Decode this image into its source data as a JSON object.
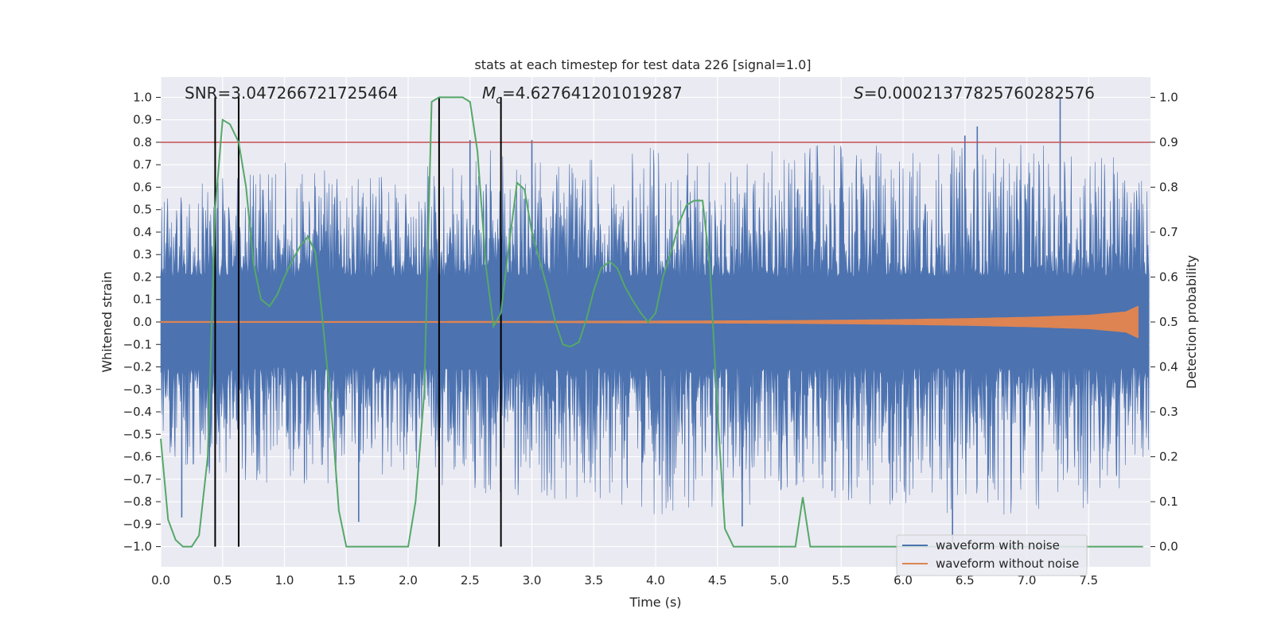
{
  "chart_data": {
    "type": "line",
    "title": "stats at each timestep for test data 226 [signal=1.0]",
    "xlabel": "Time (s)",
    "ylabel": "Whitened strain",
    "y2label": "Detection probability",
    "xlim": [
      0.0,
      8.0
    ],
    "ylim": [
      -1.09,
      1.09
    ],
    "y2lim": [
      -0.045,
      1.045
    ],
    "xticks": [
      0.0,
      0.5,
      1.0,
      1.5,
      2.0,
      2.5,
      3.0,
      3.5,
      4.0,
      4.5,
      5.0,
      5.5,
      6.0,
      6.5,
      7.0,
      7.5
    ],
    "xtick_labels": [
      "0.0",
      "0.5",
      "1.0",
      "1.5",
      "2.0",
      "2.5",
      "3.0",
      "3.5",
      "4.0",
      "4.5",
      "5.0",
      "5.5",
      "6.0",
      "6.5",
      "7.0",
      "7.5"
    ],
    "yticks": [
      1.0,
      0.9,
      0.8,
      0.7,
      0.6,
      0.5,
      0.4,
      0.3,
      0.2,
      0.1,
      0.0,
      -0.1,
      -0.2,
      -0.3,
      -0.4,
      -0.5,
      -0.6,
      -0.7,
      -0.8,
      -0.9,
      -1.0
    ],
    "ytick_labels": [
      "1.0",
      "0.9",
      "0.8",
      "0.7",
      "0.6",
      "0.5",
      "0.4",
      "0.3",
      "0.2",
      "0.1",
      "0.0",
      "−0.1",
      "−0.2",
      "−0.3",
      "−0.4",
      "−0.5",
      "−0.6",
      "−0.7",
      "−0.8",
      "−0.9",
      "−1.0"
    ],
    "y2ticks": [
      1.0,
      0.9,
      0.8,
      0.7,
      0.6,
      0.5,
      0.4,
      0.3,
      0.2,
      0.1,
      0.0
    ],
    "y2tick_labels": [
      "1.0",
      "0.9",
      "0.8",
      "0.7",
      "0.6",
      "0.5",
      "0.4",
      "0.3",
      "0.2",
      "0.1",
      "0.0"
    ],
    "annotations": {
      "snr": "SNR=3.047266721725464",
      "mc_symbol": "M",
      "mc_sub": "c",
      "mc_value": "=4.627641201019287",
      "s_symbol": "S",
      "s_value": "=0.00021377825760282576"
    },
    "threshold": {
      "value": 0.9,
      "axis": "y2",
      "color": "#c44e52"
    },
    "vlines_x": [
      0.44,
      0.63,
      2.25,
      2.75
    ],
    "noise_envelope": {
      "x": [
        0.0,
        0.5,
        1.0,
        1.5,
        2.0,
        2.5,
        3.0,
        3.5,
        4.0,
        4.5,
        5.0,
        5.5,
        6.0,
        6.5,
        7.0,
        7.5,
        8.0
      ],
      "upper": [
        0.45,
        0.5,
        0.55,
        0.5,
        0.5,
        0.6,
        0.55,
        0.55,
        0.6,
        0.55,
        0.6,
        0.6,
        0.6,
        0.6,
        0.6,
        0.6,
        0.5
      ],
      "lower": [
        -0.45,
        -0.55,
        -0.55,
        -0.55,
        -0.5,
        -0.6,
        -0.6,
        -0.6,
        -0.65,
        -0.65,
        -0.6,
        -0.6,
        -0.65,
        -0.65,
        -0.65,
        -0.65,
        -0.5
      ],
      "peaks": [
        [
          0.17,
          -0.87
        ],
        [
          1.6,
          -0.89
        ],
        [
          2.5,
          0.81
        ],
        [
          3.0,
          0.81
        ],
        [
          4.7,
          -0.91
        ],
        [
          6.5,
          0.83
        ],
        [
          6.6,
          0.87
        ],
        [
          7.27,
          1.0
        ],
        [
          6.4,
          -0.98
        ]
      ]
    },
    "clean_waveform": {
      "x": [
        0.0,
        1.0,
        2.0,
        3.0,
        4.0,
        5.0,
        5.5,
        6.0,
        6.5,
        7.0,
        7.5,
        7.8,
        7.9
      ],
      "amplitude": [
        0.002,
        0.002,
        0.002,
        0.003,
        0.004,
        0.006,
        0.008,
        0.011,
        0.015,
        0.021,
        0.03,
        0.045,
        0.07
      ]
    },
    "series": [
      {
        "name": "waveform with noise",
        "color": "#4c72b0",
        "axis": "y"
      },
      {
        "name": "waveform without noise",
        "color": "#dd8452",
        "axis": "y"
      },
      {
        "name": "detection probability",
        "color": "#55a868",
        "axis": "y2",
        "x": [
          0.0,
          0.06,
          0.12,
          0.18,
          0.25,
          0.31,
          0.38,
          0.44,
          0.5,
          0.56,
          0.63,
          0.69,
          0.75,
          0.81,
          0.88,
          0.94,
          1.0,
          1.06,
          1.13,
          1.19,
          1.25,
          1.31,
          1.38,
          1.44,
          1.5,
          1.56,
          1.63,
          1.69,
          1.75,
          1.81,
          1.88,
          1.94,
          2.0,
          2.06,
          2.13,
          2.19,
          2.25,
          2.31,
          2.38,
          2.44,
          2.5,
          2.56,
          2.63,
          2.69,
          2.75,
          2.81,
          2.88,
          2.94,
          3.0,
          3.06,
          3.13,
          3.19,
          3.25,
          3.31,
          3.38,
          3.44,
          3.5,
          3.56,
          3.63,
          3.69,
          3.75,
          3.81,
          3.88,
          3.94,
          4.0,
          4.06,
          4.13,
          4.19,
          4.25,
          4.31,
          4.38,
          4.44,
          4.5,
          4.56,
          4.63,
          4.69,
          4.75,
          4.81,
          4.88,
          4.94,
          5.0,
          5.06,
          5.13,
          5.19,
          5.25,
          6.25,
          6.38,
          6.5,
          6.63,
          6.75,
          7.5,
          7.94
        ],
        "y": [
          0.24,
          0.06,
          0.015,
          0.0,
          0.0,
          0.025,
          0.2,
          0.75,
          0.95,
          0.94,
          0.9,
          0.8,
          0.63,
          0.55,
          0.535,
          0.56,
          0.6,
          0.635,
          0.67,
          0.69,
          0.655,
          0.5,
          0.3,
          0.08,
          0.0,
          0.0,
          0.0,
          0.0,
          0.0,
          0.0,
          0.0,
          0.0,
          0.0,
          0.1,
          0.34,
          0.99,
          1.0,
          1.0,
          1.0,
          1.0,
          0.99,
          0.88,
          0.62,
          0.49,
          0.52,
          0.66,
          0.81,
          0.795,
          0.7,
          0.64,
          0.57,
          0.5,
          0.45,
          0.445,
          0.455,
          0.505,
          0.57,
          0.62,
          0.635,
          0.62,
          0.58,
          0.55,
          0.52,
          0.5,
          0.52,
          0.6,
          0.66,
          0.72,
          0.76,
          0.77,
          0.77,
          0.62,
          0.3,
          0.04,
          0.0,
          0.0,
          0.0,
          0.0,
          0.0,
          0.0,
          0.0,
          0.0,
          0.0,
          0.11,
          0.0,
          0.0,
          0.0,
          0.0,
          0.0,
          0.0,
          0.0,
          0.0
        ]
      }
    ],
    "legend": {
      "placement": "lower-right",
      "entries": [
        "waveform with noise",
        "waveform without noise"
      ]
    }
  }
}
